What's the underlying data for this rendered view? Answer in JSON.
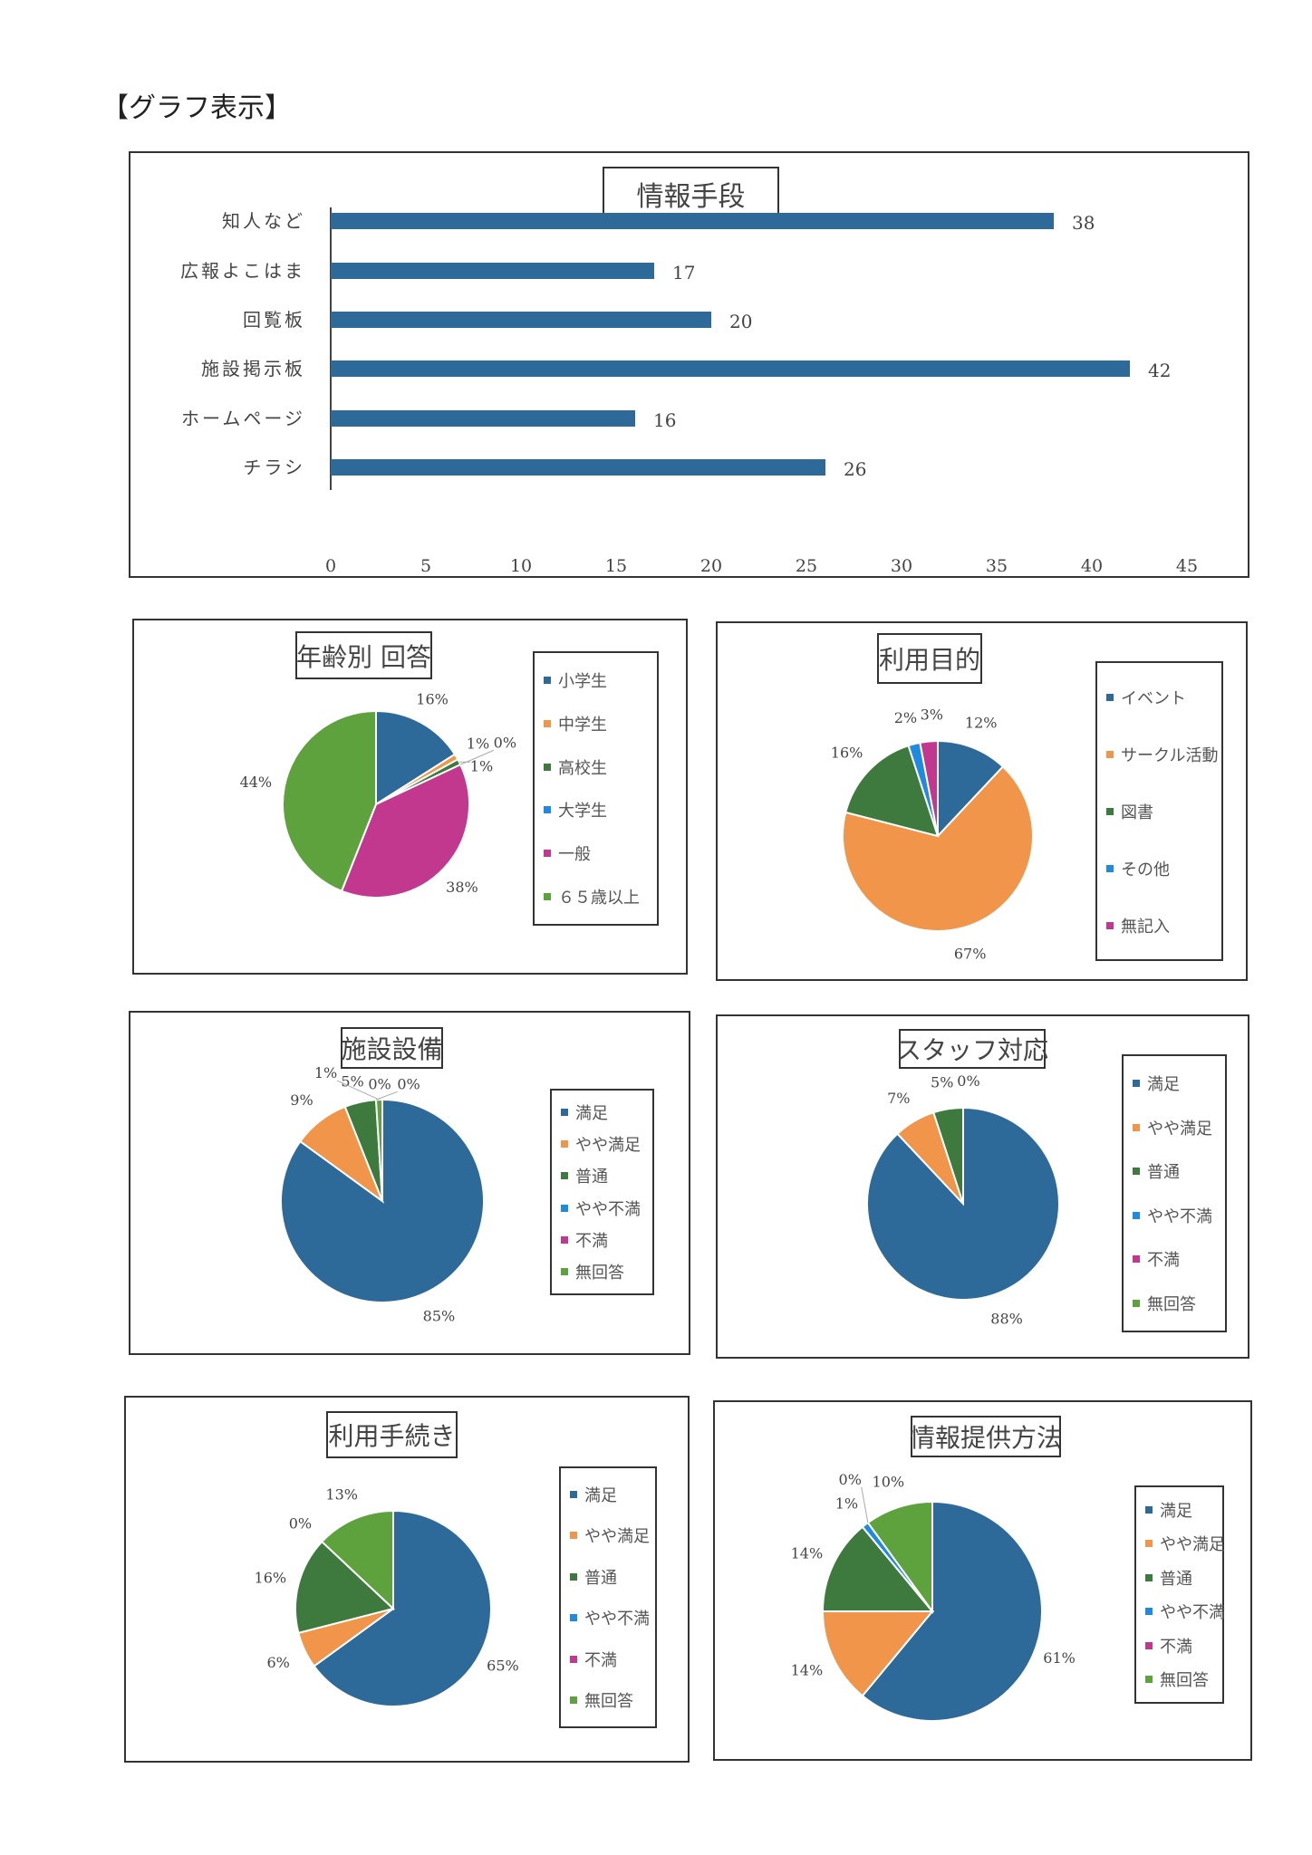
{
  "heading": "【グラフ表示】",
  "colors": [
    "#2d6a99",
    "#f0954a",
    "#3e7a3e",
    "#1f8ae0",
    "#c2388f",
    "#5da23c"
  ],
  "chart_data": [
    {
      "type": "bar",
      "orientation": "horizontal",
      "title": "情報手段",
      "categories": [
        "知人など",
        "広報よこはま",
        "回覧板",
        "施設掲示板",
        "ホームページ",
        "チラシ"
      ],
      "values": [
        38,
        17,
        20,
        42,
        16,
        26
      ],
      "xlim": [
        0,
        45
      ],
      "xticks": [
        "0",
        "5",
        "10",
        "15",
        "20",
        "25",
        "30",
        "35",
        "40",
        "45"
      ],
      "bar_color": "#2d6a99"
    },
    {
      "type": "pie",
      "title": "年齢別 回答",
      "categories": [
        "小学生",
        "中学生",
        "高校生",
        "大学生",
        "一般",
        "６５歳以上"
      ],
      "values": [
        16,
        1,
        1,
        0,
        38,
        44
      ],
      "labels": [
        "16%",
        "1%",
        "1%",
        "0%",
        "38%",
        "44%"
      ]
    },
    {
      "type": "pie",
      "title": "利用目的",
      "categories": [
        "イベント",
        "サークル活動",
        "図書",
        "その他",
        "無記入"
      ],
      "values": [
        12,
        67,
        16,
        2,
        3
      ],
      "labels": [
        "12%",
        "67%",
        "16%",
        "2%",
        "3%"
      ]
    },
    {
      "type": "pie",
      "title": "施設設備",
      "categories": [
        "満足",
        "やや満足",
        "普通",
        "やや不満",
        "不満",
        "無回答"
      ],
      "values": [
        85,
        9,
        5,
        0,
        0,
        1
      ],
      "labels": [
        "85%",
        "9%",
        "5%",
        "0%",
        "0%",
        "1%"
      ]
    },
    {
      "type": "pie",
      "title": "スタッフ対応",
      "categories": [
        "満足",
        "やや満足",
        "普通",
        "やや不満",
        "不満",
        "無回答"
      ],
      "values": [
        88,
        7,
        5,
        0,
        0,
        0
      ],
      "labels": [
        "88%",
        "7%",
        "5%",
        "0%",
        "",
        ""
      ]
    },
    {
      "type": "pie",
      "title": "利用手続き",
      "categories": [
        "満足",
        "やや満足",
        "普通",
        "やや不満",
        "不満",
        "無回答"
      ],
      "values": [
        65,
        6,
        16,
        0,
        0,
        13
      ],
      "labels": [
        "65%",
        "6%",
        "16%",
        "0%",
        "",
        "13%"
      ]
    },
    {
      "type": "pie",
      "title": "情報提供方法",
      "categories": [
        "満足",
        "やや満足",
        "普通",
        "やや不満",
        "不満",
        "無回答"
      ],
      "values": [
        61,
        14,
        14,
        1,
        0,
        10
      ],
      "labels": [
        "61%",
        "14%",
        "14%",
        "1%",
        "0%",
        "10%"
      ]
    }
  ]
}
